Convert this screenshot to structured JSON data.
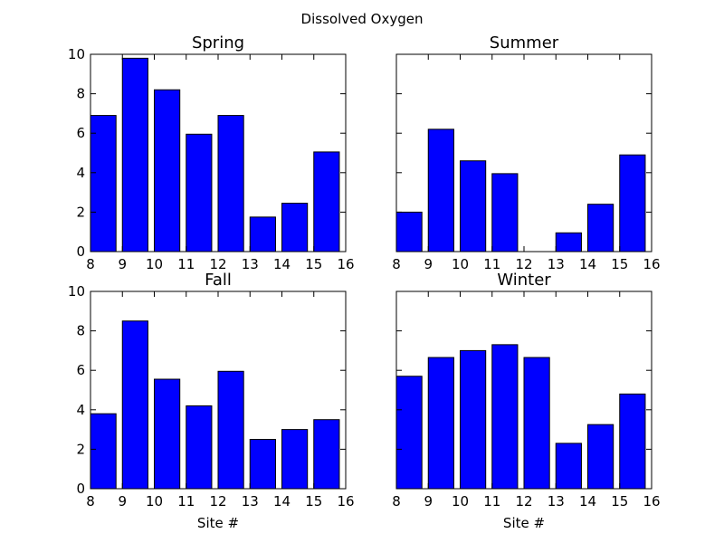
{
  "chart_data": {
    "type": "bar",
    "title": "Dissolved Oxygen",
    "colors": {
      "bar": "#0000ff",
      "edge": "#000000"
    },
    "grid": false,
    "shared_xlim": [
      8,
      16
    ],
    "shared_ylim": [
      0,
      10
    ],
    "xticks": [
      8,
      9,
      10,
      11,
      12,
      13,
      14,
      15,
      16
    ],
    "yticks": [
      0,
      2,
      4,
      6,
      8,
      10
    ],
    "bar_left_edges": [
      8,
      9,
      10,
      11,
      12,
      13,
      14,
      15
    ],
    "bar_width": 0.8,
    "subplots": [
      {
        "title": "Spring",
        "xlabel": "",
        "values": [
          6.9,
          9.8,
          8.2,
          5.95,
          6.9,
          1.75,
          2.45,
          5.05
        ]
      },
      {
        "title": "Summer",
        "xlabel": "",
        "values": [
          2.0,
          6.2,
          4.6,
          3.95,
          0.0,
          0.95,
          2.4,
          4.9
        ]
      },
      {
        "title": "Fall",
        "xlabel": "Site #",
        "values": [
          3.8,
          8.5,
          5.55,
          4.2,
          5.95,
          2.5,
          3.0,
          3.5
        ]
      },
      {
        "title": "Winter",
        "xlabel": "Site #",
        "values": [
          5.7,
          6.65,
          7.0,
          7.3,
          6.65,
          2.3,
          3.25,
          4.8
        ]
      }
    ]
  }
}
